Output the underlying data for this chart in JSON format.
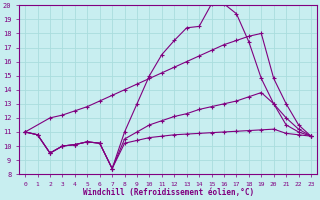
{
  "xlabel": "Windchill (Refroidissement éolien,°C)",
  "bg_color": "#c8eef0",
  "line_color": "#800080",
  "grid_color": "#aadddd",
  "xlim": [
    -0.5,
    23.5
  ],
  "ylim": [
    8,
    20
  ],
  "yticks": [
    8,
    9,
    10,
    11,
    12,
    13,
    14,
    15,
    16,
    17,
    18,
    19,
    20
  ],
  "xticks": [
    0,
    1,
    2,
    3,
    4,
    5,
    6,
    7,
    8,
    9,
    10,
    11,
    12,
    13,
    14,
    15,
    16,
    17,
    18,
    19,
    20,
    21,
    22,
    23
  ],
  "line1_x": [
    0,
    1,
    2,
    3,
    4,
    5,
    6,
    7,
    8,
    9,
    10,
    11,
    12,
    13,
    14,
    15,
    16,
    17,
    18,
    19,
    20,
    21,
    22,
    23
  ],
  "line1_y": [
    11.0,
    10.8,
    9.5,
    10.0,
    10.1,
    10.3,
    10.2,
    8.4,
    11.0,
    13.0,
    15.0,
    16.5,
    17.5,
    18.4,
    18.5,
    20.1,
    20.1,
    19.4,
    17.4,
    14.8,
    13.0,
    11.5,
    11.0,
    10.7
  ],
  "line2_x": [
    0,
    2,
    3,
    4,
    5,
    6,
    7,
    8,
    9,
    10,
    11,
    12,
    13,
    14,
    15,
    16,
    17,
    18,
    19,
    20,
    21,
    22,
    23
  ],
  "line2_y": [
    11.0,
    12.0,
    12.2,
    12.5,
    12.8,
    13.2,
    13.6,
    14.0,
    14.4,
    14.8,
    15.2,
    15.6,
    16.0,
    16.4,
    16.8,
    17.2,
    17.5,
    17.8,
    18.0,
    14.8,
    13.0,
    11.5,
    10.7
  ],
  "line3_x": [
    0,
    1,
    2,
    3,
    4,
    5,
    6,
    7,
    8,
    9,
    10,
    11,
    12,
    13,
    14,
    15,
    16,
    17,
    18,
    19,
    20,
    21,
    22,
    23
  ],
  "line3_y": [
    11.0,
    10.8,
    9.5,
    10.0,
    10.1,
    10.3,
    10.2,
    8.4,
    10.5,
    11.0,
    11.5,
    11.8,
    12.1,
    12.3,
    12.6,
    12.8,
    13.0,
    13.2,
    13.5,
    13.8,
    13.0,
    12.0,
    11.2,
    10.7
  ],
  "line4_x": [
    0,
    1,
    2,
    3,
    4,
    5,
    6,
    7,
    8,
    9,
    10,
    11,
    12,
    13,
    14,
    15,
    16,
    17,
    18,
    19,
    20,
    21,
    22,
    23
  ],
  "line4_y": [
    11.0,
    10.8,
    9.5,
    10.0,
    10.1,
    10.3,
    10.2,
    8.4,
    10.2,
    10.4,
    10.6,
    10.7,
    10.8,
    10.85,
    10.9,
    10.95,
    11.0,
    11.05,
    11.1,
    11.15,
    11.2,
    10.9,
    10.8,
    10.7
  ]
}
